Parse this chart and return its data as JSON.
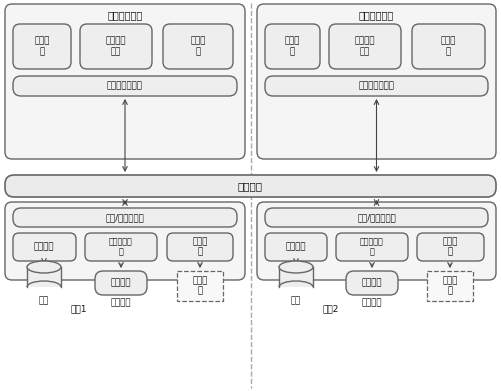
{
  "fig_width": 5.01,
  "fig_height": 3.91,
  "dpi": 100,
  "bg_color": "#ffffff",
  "border_color": "#666666",
  "box_fill": "#eeeeee",
  "outer_fill": "#f5f5f5",
  "text_color": "#111111",
  "font_size_title": 7.0,
  "font_size_box": 6.2,
  "font_size_small": 5.8,
  "font_size_node": 6.5,
  "os_label": "本地操作系统",
  "fs_label": "文件系\n统",
  "vm_label": "虚拟内存\n管理",
  "pm_label": "进程管\n理",
  "map_label": "映射接口链接器",
  "global_label": "全局容器",
  "io_label": "输入/输出链接器",
  "disk_mgr_label": "磁盘管理",
  "mem_mgr_label": "物理内存管\n理",
  "dev_drv_label": "设备驱\n动",
  "disk_label": "磁盘",
  "phys_mem_label": "物理内存",
  "net_label": "网络设\n备",
  "node1_label": "节点1",
  "node2_label": "节点2"
}
